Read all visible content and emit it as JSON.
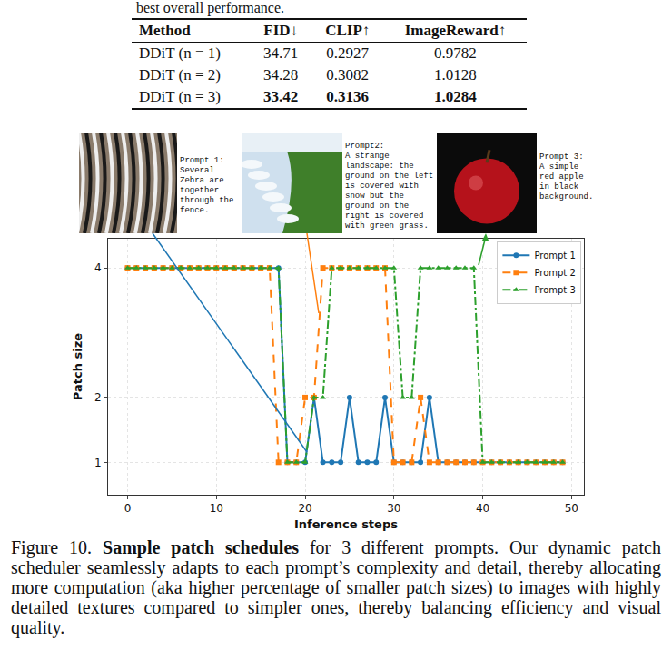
{
  "fragment": "best overall performance.",
  "table": {
    "columns": [
      "Method",
      "FID↓",
      "CLIP↑",
      "ImageReward↑"
    ],
    "rows": [
      {
        "cells": [
          "DDiT (n = 1)",
          "34.71",
          "0.2927",
          "0.9782"
        ],
        "bold": false
      },
      {
        "cells": [
          "DDiT (n = 2)",
          "34.28",
          "0.3082",
          "1.0128"
        ],
        "bold": false
      },
      {
        "cells": [
          "DDiT (n = 3)",
          "33.42",
          "0.3136",
          "1.0284"
        ],
        "bold": true
      }
    ]
  },
  "prompts": [
    {
      "label": "Prompt 1:",
      "text": "Several Zebra are together through the fence."
    },
    {
      "label": "Prompt2:",
      "text": "A strange landscape: the ground on the left is covered with snow but the ground on the right is covered with green grass."
    },
    {
      "label": "Prompt 3:",
      "text": "A simple red apple in black background."
    }
  ],
  "chart_data": {
    "type": "line",
    "x_label": "Inference steps",
    "y_label": "Patch size",
    "x": [
      0,
      1,
      2,
      3,
      4,
      5,
      6,
      7,
      8,
      9,
      10,
      11,
      12,
      13,
      14,
      15,
      16,
      17,
      18,
      19,
      20,
      21,
      22,
      23,
      24,
      25,
      26,
      27,
      28,
      29,
      30,
      31,
      32,
      33,
      34,
      35,
      36,
      37,
      38,
      39,
      40,
      41,
      42,
      43,
      44,
      45,
      46,
      47,
      48,
      49
    ],
    "series": [
      {
        "name": "Prompt 1",
        "color": "#1f77b4",
        "marker": "circle",
        "line_style": "solid",
        "values": [
          4,
          4,
          4,
          4,
          4,
          4,
          4,
          4,
          4,
          4,
          4,
          4,
          4,
          4,
          4,
          4,
          4,
          4,
          1,
          1,
          1,
          2,
          1,
          1,
          1,
          2,
          1,
          1,
          1,
          2,
          1,
          1,
          1,
          1,
          2,
          1,
          1,
          1,
          1,
          1,
          1,
          1,
          1,
          1,
          1,
          1,
          1,
          1,
          1,
          1
        ]
      },
      {
        "name": "Prompt 2",
        "color": "#ff7f0e",
        "marker": "square",
        "line_style": "dash",
        "values": [
          4,
          4,
          4,
          4,
          4,
          4,
          4,
          4,
          4,
          4,
          4,
          4,
          4,
          4,
          4,
          4,
          4,
          1,
          1,
          1,
          2,
          2,
          4,
          4,
          4,
          4,
          4,
          4,
          4,
          4,
          1,
          1,
          1,
          2,
          1,
          1,
          1,
          1,
          1,
          1,
          1,
          1,
          1,
          1,
          1,
          1,
          1,
          1,
          1,
          1
        ]
      },
      {
        "name": "Prompt 3",
        "color": "#2ca02c",
        "marker": "triangle-up",
        "line_style": "dashdot",
        "values": [
          4,
          4,
          4,
          4,
          4,
          4,
          4,
          4,
          4,
          4,
          4,
          4,
          4,
          4,
          4,
          4,
          4,
          4,
          1,
          1,
          1,
          2,
          2,
          4,
          4,
          4,
          4,
          4,
          4,
          4,
          4,
          2,
          2,
          4,
          4,
          4,
          4,
          4,
          4,
          4,
          1,
          1,
          1,
          1,
          1,
          1,
          1,
          1,
          1,
          1
        ]
      }
    ],
    "xlim": [
      -2.2,
      51.4
    ],
    "ylim": [
      0.5,
      4.45
    ],
    "xticks": [
      0,
      10,
      20,
      30,
      40,
      50
    ],
    "yticks": [
      1,
      2,
      4
    ],
    "grid": true,
    "legend": "upper right"
  },
  "caption": {
    "label": "Figure 10.",
    "title": "Sample patch schedules",
    "text": "for 3 different prompts. Our dynamic patch scheduler seamlessly adapts to each prompt’s complexity and detail, thereby allocating more computation (aka higher percentage of smaller patch sizes) to images with highly detailed textures compared to simpler ones, thereby balancing efficiency and visual quality."
  }
}
